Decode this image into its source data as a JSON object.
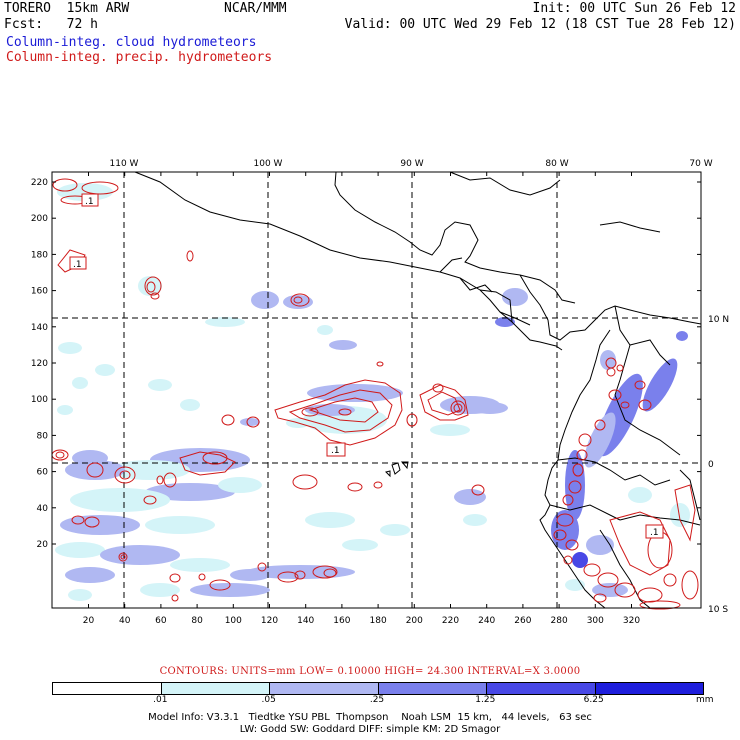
{
  "header": {
    "left1": "TORERO  15km ARW",
    "center1": "NCAR/MMM",
    "right1": "Init: 00 UTC Sun 26 Feb 12",
    "left2": "Fcst:   72 h",
    "right2": "Valid: 00 UTC Wed 29 Feb 12 (18 CST Tue 28 Feb 12)",
    "legend_blue": "Column-integ. cloud hydrometeors",
    "legend_red": "Column-integ. precip. hydrometeors"
  },
  "map": {
    "top_lon_labels": [
      "110 W",
      "100 W",
      "90 W",
      "80 W",
      "70 W"
    ],
    "right_lat_labels": [
      "10 N",
      "0",
      "10 S"
    ],
    "y_ticks": [
      "220",
      "200",
      "180",
      "160",
      "140",
      "120",
      "100",
      "80",
      "60",
      "40",
      "20"
    ],
    "x_ticks": [
      "20",
      "40",
      "60",
      "80",
      "100",
      "120",
      "140",
      "160",
      "180",
      "200",
      "220",
      "240",
      "260",
      "280",
      "300",
      "320"
    ],
    "contour_label": ".1",
    "colors": {
      "shade1": "#d4f4f8",
      "shade2": "#b0b8f2",
      "shade3": "#7a80ec",
      "shade4": "#4848e6",
      "shade5": "#1e1edc",
      "contour": "#d01a1a",
      "border": "#000000"
    }
  },
  "contour_info": "CONTOURS:  UNITS=mm  LOW= 0.10000      HIGH=  24.300      INTERVAL=X  3.0000",
  "colorbar": {
    "colors": [
      "#ffffff",
      "#d4f4f8",
      "#b0b8f2",
      "#7a80ec",
      "#4848e6",
      "#1e1edc"
    ],
    "labels": [
      ".01",
      ".05",
      ".25",
      "1.25",
      "6.25"
    ],
    "unit": "mm"
  },
  "model_info": {
    "line1": "Model Info: V3.3.1   Tiedtke YSU PBL  Thompson    Noah LSM  15 km,   44 levels,   63 sec",
    "line2": "LW: Godd SW: Goddard DIFF: simple KM: 2D Smagor"
  }
}
